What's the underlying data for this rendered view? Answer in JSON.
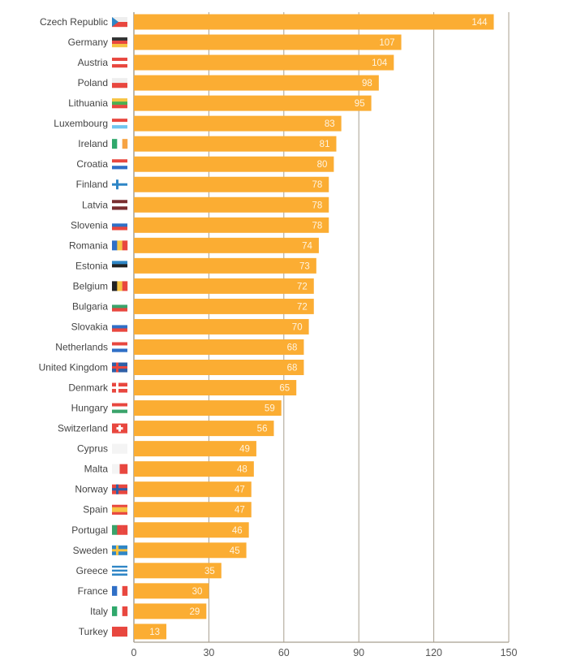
{
  "chart_data": {
    "type": "bar",
    "orientation": "horizontal",
    "title": "",
    "xlabel": "",
    "ylabel": "",
    "xlim": [
      0,
      150
    ],
    "xticks": [
      0,
      30,
      60,
      90,
      120,
      150
    ],
    "grid": true,
    "bar_color": "#fbad33",
    "grid_color": "#a89f8f",
    "categories": [
      "Czech Republic",
      "Germany",
      "Austria",
      "Poland",
      "Lithuania",
      "Luxembourg",
      "Ireland",
      "Croatia",
      "Finland",
      "Latvia",
      "Slovenia",
      "Romania",
      "Estonia",
      "Belgium",
      "Bulgaria",
      "Slovakia",
      "Netherlands",
      "United Kingdom",
      "Denmark",
      "Hungary",
      "Switzerland",
      "Cyprus",
      "Malta",
      "Norway",
      "Spain",
      "Portugal",
      "Sweden",
      "Greece",
      "France",
      "Italy",
      "Turkey"
    ],
    "values": [
      144,
      107,
      104,
      98,
      95,
      83,
      81,
      80,
      78,
      78,
      78,
      74,
      73,
      72,
      72,
      70,
      68,
      68,
      65,
      59,
      56,
      49,
      48,
      47,
      47,
      46,
      45,
      35,
      30,
      29,
      13
    ],
    "flags": [
      {
        "type": "czech",
        "colors": [
          "#eeeeee",
          "#e8473f",
          "#2f86c6"
        ]
      },
      {
        "type": "h",
        "colors": [
          "#333333",
          "#e8473f",
          "#f6c343"
        ]
      },
      {
        "type": "h",
        "colors": [
          "#e8473f",
          "#ffffff",
          "#e8473f"
        ]
      },
      {
        "type": "h",
        "colors": [
          "#eeeeee",
          "#e8473f"
        ]
      },
      {
        "type": "h",
        "colors": [
          "#f6c343",
          "#4caf50",
          "#e8473f"
        ]
      },
      {
        "type": "h",
        "colors": [
          "#e8473f",
          "#ffffff",
          "#6ec6f0"
        ]
      },
      {
        "type": "v",
        "colors": [
          "#2fa86b",
          "#ffffff",
          "#f6a343"
        ]
      },
      {
        "type": "h",
        "colors": [
          "#e8473f",
          "#ffffff",
          "#2f6fc6"
        ]
      },
      {
        "type": "cross",
        "colors": [
          "#ffffff",
          "#2f86c6"
        ]
      },
      {
        "type": "h",
        "colors": [
          "#7a2e30",
          "#ffffff",
          "#7a2e30"
        ]
      },
      {
        "type": "h",
        "colors": [
          "#ffffff",
          "#2f6fc6",
          "#e8473f"
        ]
      },
      {
        "type": "v",
        "colors": [
          "#2f6fc6",
          "#f6c343",
          "#e8473f"
        ]
      },
      {
        "type": "h",
        "colors": [
          "#2f86c6",
          "#222222",
          "#ffffff"
        ]
      },
      {
        "type": "v",
        "colors": [
          "#222222",
          "#f6c343",
          "#e8473f"
        ]
      },
      {
        "type": "h",
        "colors": [
          "#ffffff",
          "#3aa36b",
          "#e8473f"
        ]
      },
      {
        "type": "h",
        "colors": [
          "#ffffff",
          "#2f6fc6",
          "#e8473f"
        ]
      },
      {
        "type": "h",
        "colors": [
          "#e8473f",
          "#ffffff",
          "#2f6fc6"
        ]
      },
      {
        "type": "cross",
        "colors": [
          "#2f5fa6",
          "#e8473f"
        ]
      },
      {
        "type": "cross",
        "colors": [
          "#e8473f",
          "#ffffff"
        ]
      },
      {
        "type": "h",
        "colors": [
          "#e8473f",
          "#ffffff",
          "#3aa36b"
        ]
      },
      {
        "type": "plus",
        "colors": [
          "#e8473f",
          "#ffffff"
        ]
      },
      {
        "type": "h",
        "colors": [
          "#f4f4f4"
        ]
      },
      {
        "type": "v",
        "colors": [
          "#f4f4f4",
          "#e8473f"
        ]
      },
      {
        "type": "cross",
        "colors": [
          "#e8473f",
          "#2f5fa6"
        ]
      },
      {
        "type": "h",
        "colors": [
          "#e8473f",
          "#f6c343",
          "#f6c343",
          "#e8473f"
        ]
      },
      {
        "type": "v",
        "colors": [
          "#3aa36b",
          "#e8473f",
          "#e8473f"
        ]
      },
      {
        "type": "cross",
        "colors": [
          "#2f86c6",
          "#f6c343"
        ]
      },
      {
        "type": "h",
        "colors": [
          "#2f86c6",
          "#ffffff",
          "#2f86c6",
          "#ffffff",
          "#2f86c6"
        ]
      },
      {
        "type": "v",
        "colors": [
          "#2f6fc6",
          "#ffffff",
          "#e8473f"
        ]
      },
      {
        "type": "v",
        "colors": [
          "#2fa86b",
          "#ffffff",
          "#e8473f"
        ]
      },
      {
        "type": "h",
        "colors": [
          "#e8473f"
        ]
      }
    ]
  }
}
